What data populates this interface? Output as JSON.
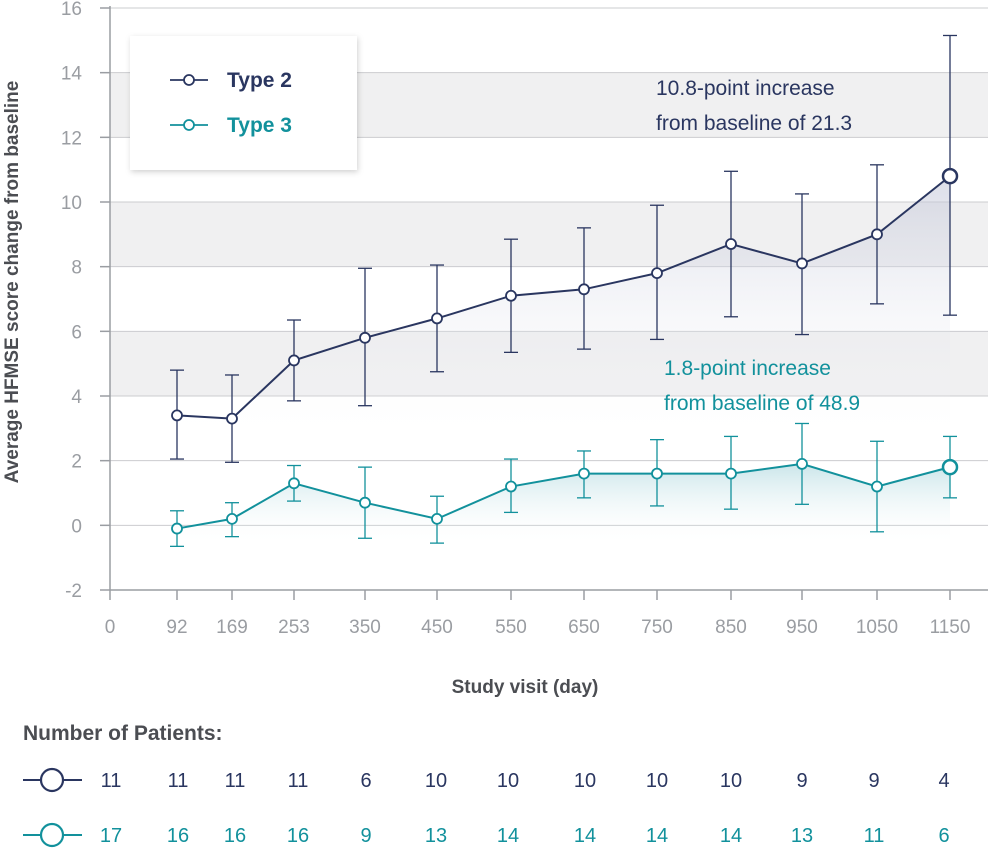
{
  "chart_data": {
    "type": "line",
    "xlabel": "Study visit (day)",
    "ylabel": "Average HFMSE score change from baseline",
    "x_ticks": [
      "0",
      "92",
      "169",
      "253",
      "350",
      "450",
      "550",
      "650",
      "750",
      "850",
      "950",
      "1050",
      "1150"
    ],
    "y_ticks": [
      -2,
      0,
      2,
      4,
      6,
      8,
      10,
      12,
      14,
      16
    ],
    "ylim": [
      -2,
      16
    ],
    "grid": "horizontal alternating bands",
    "legend_position": "top-left",
    "series": [
      {
        "name": "Type 2",
        "color": "#2a3660",
        "x": [
          92,
          169,
          253,
          350,
          450,
          550,
          650,
          750,
          850,
          950,
          1050,
          1150
        ],
        "y": [
          3.4,
          3.3,
          5.1,
          5.8,
          6.4,
          7.1,
          7.3,
          7.8,
          8.7,
          8.1,
          9.0,
          10.8
        ],
        "err_low": [
          2.05,
          1.95,
          3.85,
          3.7,
          4.75,
          5.35,
          5.45,
          5.75,
          6.45,
          5.9,
          6.85,
          6.5
        ],
        "err_high": [
          4.8,
          4.65,
          6.35,
          7.95,
          8.05,
          8.85,
          9.2,
          9.9,
          10.95,
          10.25,
          11.15,
          15.15
        ]
      },
      {
        "name": "Type 3",
        "color": "#12919c",
        "x": [
          92,
          169,
          253,
          350,
          450,
          550,
          650,
          750,
          850,
          950,
          1050,
          1150
        ],
        "y": [
          -0.1,
          0.2,
          1.3,
          0.7,
          0.2,
          1.2,
          1.6,
          1.6,
          1.6,
          1.9,
          1.2,
          1.8
        ],
        "err_low": [
          -0.65,
          -0.35,
          0.75,
          -0.4,
          -0.55,
          0.4,
          0.85,
          0.6,
          0.5,
          0.65,
          -0.2,
          0.85
        ],
        "err_high": [
          0.45,
          0.7,
          1.85,
          1.8,
          0.9,
          2.05,
          2.3,
          2.65,
          2.75,
          3.15,
          2.6,
          2.75
        ]
      }
    ],
    "annotations": [
      {
        "series": 0,
        "lines": [
          "10.8-point increase",
          "from baseline of 21.3"
        ]
      },
      {
        "series": 1,
        "lines": [
          "1.8-point increase",
          "from baseline of 48.9"
        ]
      }
    ]
  },
  "patients": {
    "title": "Number of Patients:",
    "rows": [
      {
        "series": "Type 2",
        "color": "#2a3660",
        "counts": [
          "11",
          "11",
          "11",
          "11",
          "6",
          "10",
          "10",
          "10",
          "10",
          "10",
          "9",
          "9",
          "4"
        ]
      },
      {
        "series": "Type 3",
        "color": "#12919c",
        "counts": [
          "17",
          "16",
          "16",
          "16",
          "9",
          "13",
          "14",
          "14",
          "14",
          "14",
          "13",
          "11",
          "6"
        ]
      }
    ]
  }
}
